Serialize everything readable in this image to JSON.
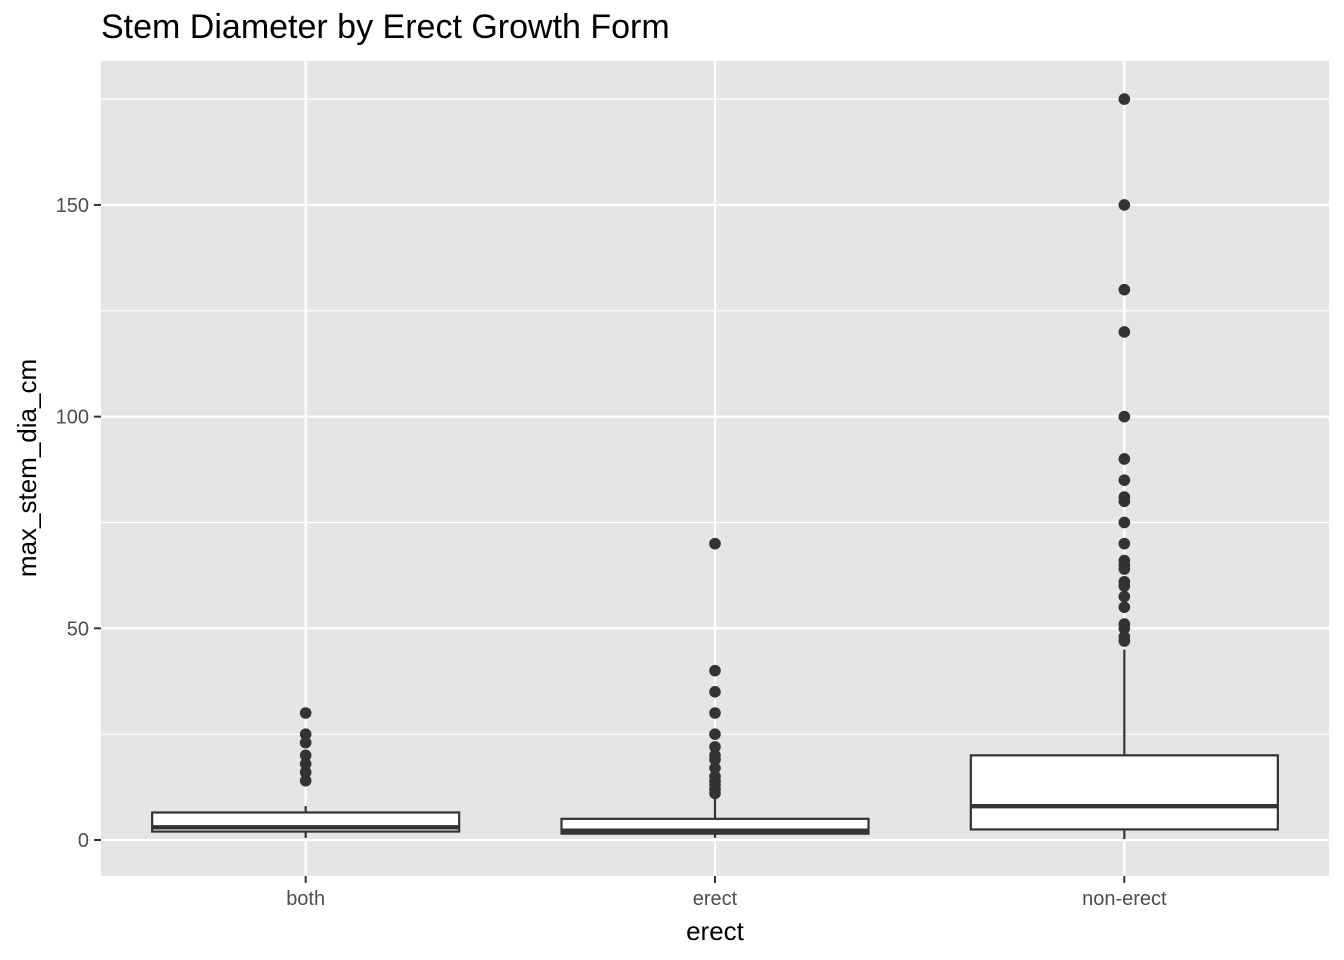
{
  "chart_data": {
    "type": "boxplot",
    "title": "Stem Diameter by Erect Growth Form",
    "xlabel": "erect",
    "ylabel": "max_stem_dia_cm",
    "categories": [
      "both",
      "erect",
      "non-erect"
    ],
    "ylim": [
      -8.5,
      184
    ],
    "yticks": [
      0,
      50,
      100,
      150
    ],
    "grid": true,
    "boxes": [
      {
        "category": "both",
        "whisker_low": 0.5,
        "q1": 2,
        "median": 3,
        "q3": 6.5,
        "whisker_high": 8,
        "outliers": [
          14,
          16,
          18,
          20,
          23,
          25,
          30
        ]
      },
      {
        "category": "erect",
        "whisker_low": 0.5,
        "q1": 1.5,
        "median": 2.2,
        "q3": 5,
        "whisker_high": 10,
        "outliers": [
          11,
          12,
          13,
          14,
          15,
          17,
          19,
          20,
          22,
          25,
          30,
          35,
          40,
          70
        ]
      },
      {
        "category": "non-erect",
        "whisker_low": 0.2,
        "q1": 2.5,
        "median": 8,
        "q3": 20,
        "whisker_high": 45,
        "outliers": [
          47,
          48,
          50,
          51,
          55,
          57.5,
          60,
          61,
          64,
          65,
          66,
          70,
          75,
          80,
          81,
          85,
          90,
          100,
          120,
          130,
          150,
          175
        ]
      }
    ],
    "colors": {
      "panel": "#e5e5e5",
      "grid": "#ffffff",
      "box_fill": "#ffffff",
      "box_line": "#333333",
      "point": "#333333",
      "tick_text": "#4d4d4d"
    }
  }
}
